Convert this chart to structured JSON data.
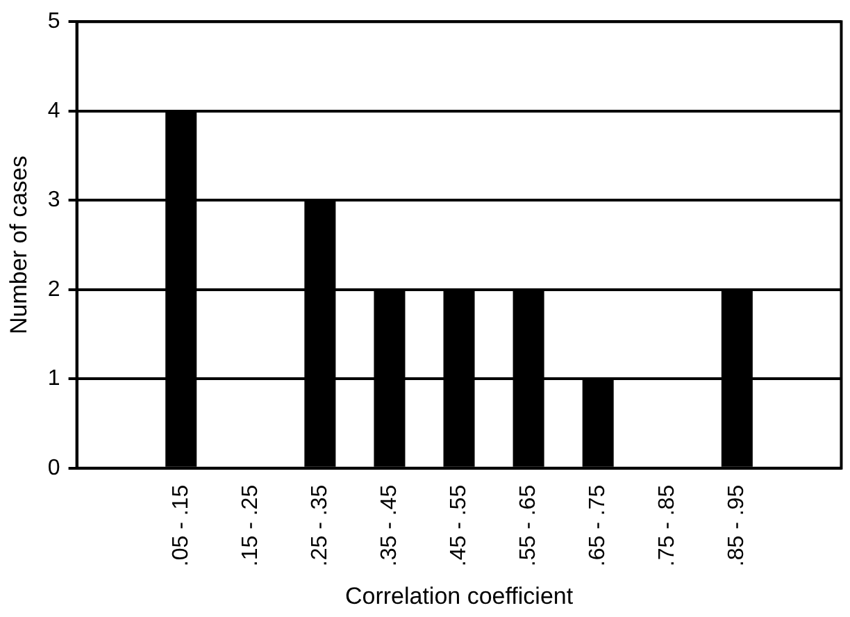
{
  "chart_data": {
    "type": "bar",
    "xlabel": "Correlation coefficient",
    "ylabel": "Number of cases",
    "categories": [
      null,
      ".05 - .15",
      ".15 - .25",
      ".25 - .35",
      ".35 - .45",
      ".45 - .55",
      ".55 - .65",
      ".65 - .75",
      ".75 - .85",
      ".85 - .95",
      null
    ],
    "values": [
      null,
      4,
      0,
      3,
      2,
      2,
      2,
      1,
      0,
      2,
      null
    ],
    "color": "#000000",
    "ylim": [
      0,
      5
    ],
    "yticks": [
      0,
      1,
      2,
      3,
      4,
      5
    ],
    "grid": "y",
    "legend": false
  }
}
